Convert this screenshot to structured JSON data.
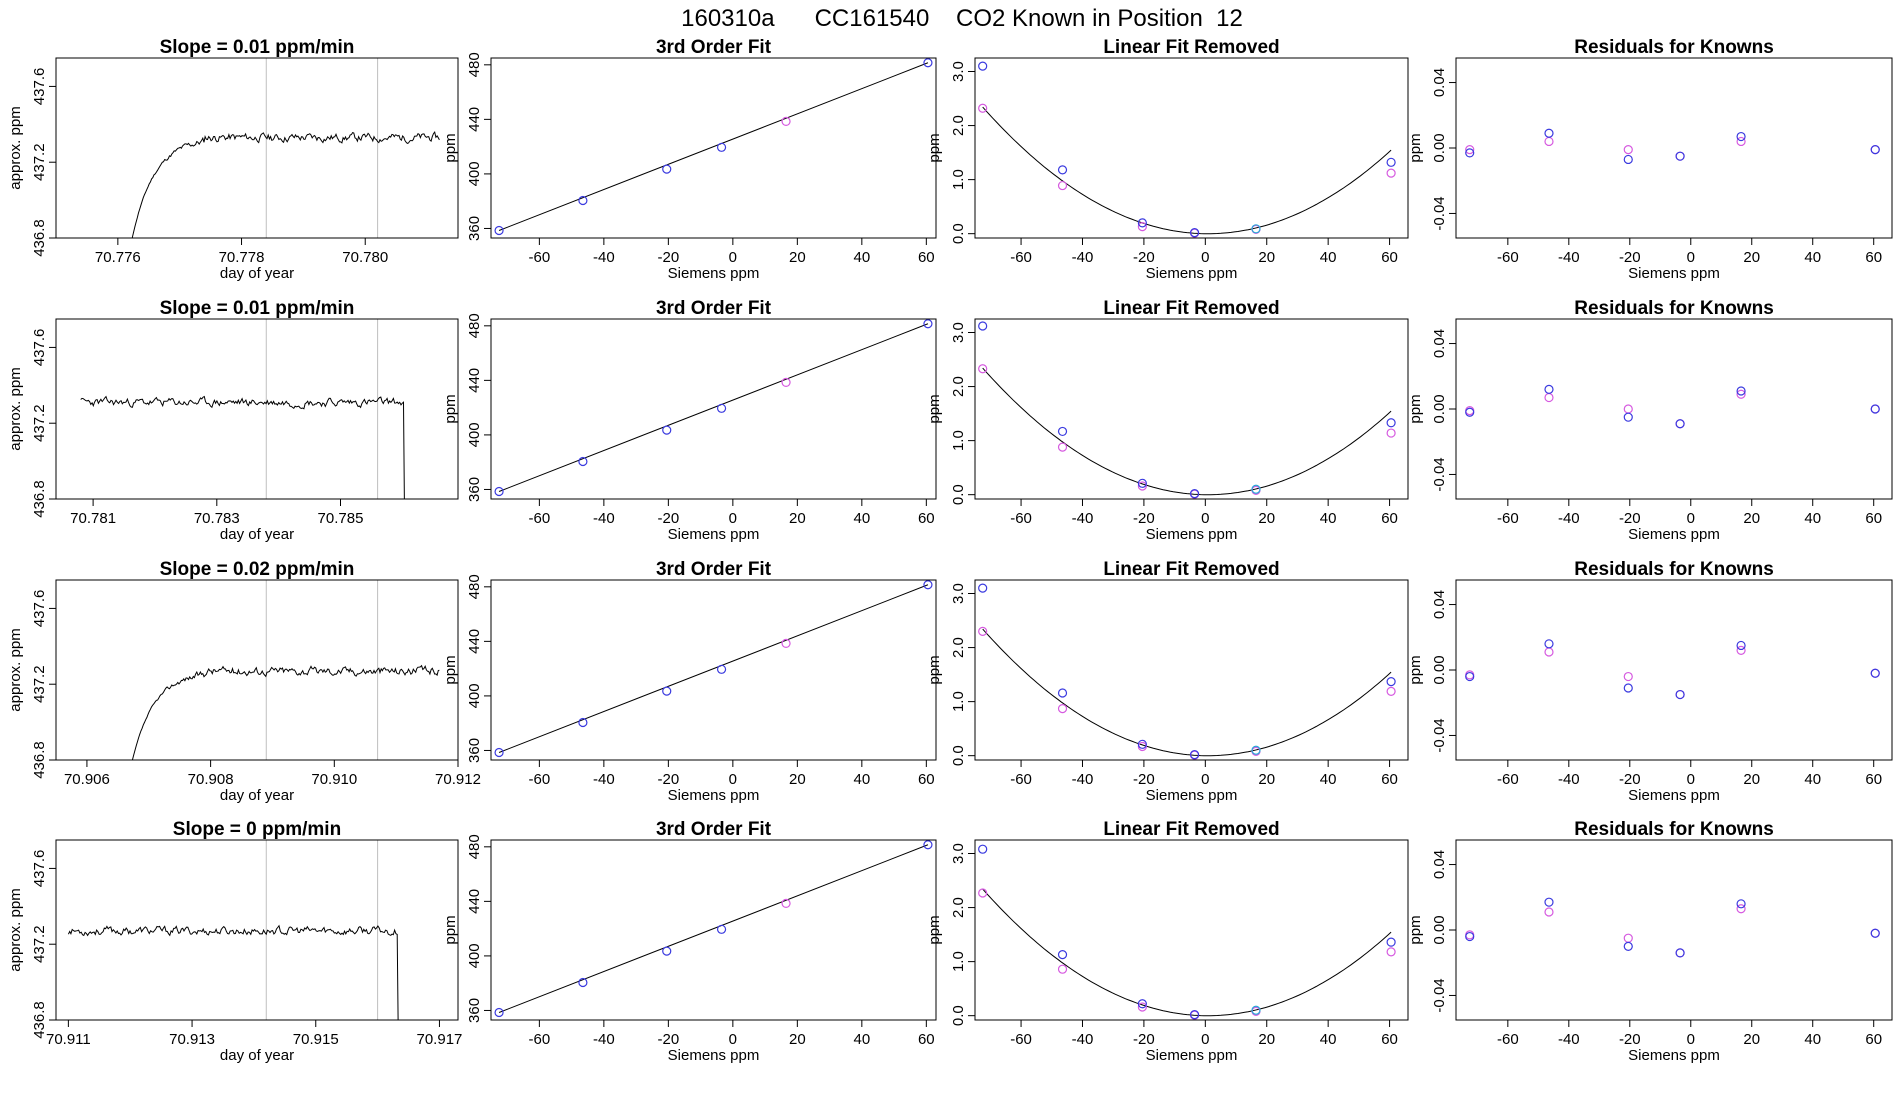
{
  "figure": {
    "title": "160310a      CC161540    CO2 Known in Position  12",
    "colors": {
      "line": "#000000",
      "ref_line": "#bfbfbf",
      "blue": "#3a3adf",
      "magenta": "#d65ae0",
      "cyan": "#2aa9d6"
    }
  },
  "chart_data": [
    {
      "type": "line",
      "row": 0,
      "col": 0,
      "title": "Slope =  0.01  ppm/min",
      "xlabel": "day of year",
      "ylabel": "approx. ppm",
      "xlim": [
        70.775,
        70.7815
      ],
      "ylim": [
        436.8,
        437.75
      ],
      "xticks": [
        70.776,
        70.778,
        70.78
      ],
      "xtick_labels": [
        "70.776",
        "70.778",
        "70.780"
      ],
      "yticks": [
        436.8,
        437.2,
        437.6
      ],
      "ytick_labels": [
        "436.8",
        "437.2",
        "437.6"
      ],
      "vlines": [
        70.7784,
        70.7802
      ],
      "series": {
        "start": 70.7762,
        "end": 70.7812,
        "level": 437.33,
        "rise": true,
        "drop": false,
        "seed": 11
      }
    },
    {
      "type": "scatter",
      "row": 0,
      "col": 1,
      "title": "3rd Order Fit",
      "xlabel": "Siemens ppm",
      "ylabel": "ppm",
      "xlim": [
        -75,
        63
      ],
      "ylim": [
        353,
        485
      ],
      "xticks": [
        -60,
        -40,
        -20,
        0,
        20,
        40,
        60
      ],
      "yticks": [
        360,
        400,
        440,
        480
      ],
      "points_x": [
        -72.5,
        -46.5,
        -20.5,
        -3.5,
        16.5,
        60.5
      ],
      "points_y": [
        358.5,
        380.5,
        403.5,
        419.5,
        438.5,
        481.5
      ],
      "line": [
        [
          -72.5,
          358.5
        ],
        [
          60.5,
          481.5
        ]
      ]
    },
    {
      "type": "scatter",
      "row": 0,
      "col": 2,
      "title": "Linear Fit Removed",
      "xlabel": "Siemens ppm",
      "ylabel": "ppm",
      "xlim": [
        -75,
        66
      ],
      "ylim": [
        -0.08,
        3.25
      ],
      "xticks": [
        -60,
        -40,
        -20,
        0,
        20,
        40,
        60
      ],
      "yticks": [
        0.0,
        1.0,
        2.0,
        3.0
      ],
      "ytick_labels": [
        "0.0",
        "1.0",
        "2.0",
        "3.0"
      ],
      "points_x": [
        -72.5,
        -46.5,
        -20.5,
        -3.5,
        16.5,
        60.5
      ],
      "blue_y": [
        3.1,
        1.18,
        0.2,
        0.02,
        0.09,
        1.32
      ],
      "magenta_y": [
        2.32,
        0.89,
        0.13,
        0.01,
        0.08,
        1.12
      ],
      "curve_coef": {
        "a": 0.000435,
        "b": -0.00077,
        "c0": 0.0
      }
    },
    {
      "type": "scatter",
      "row": 0,
      "col": 3,
      "title": "Residuals for Knowns",
      "xlabel": "Siemens ppm",
      "ylabel": "ppm",
      "xlim": [
        -77,
        66
      ],
      "ylim": [
        -0.055,
        0.055
      ],
      "xticks": [
        -60,
        -40,
        -20,
        0,
        20,
        40,
        60
      ],
      "yticks": [
        -0.04,
        0.0,
        0.04
      ],
      "ytick_labels": [
        "-0.04",
        "0.00",
        "0.04"
      ],
      "points_x": [
        -72.5,
        -46.5,
        -20.5,
        -3.5,
        16.5,
        60.5
      ],
      "blue_y": [
        -0.003,
        0.009,
        -0.007,
        -0.005,
        0.007,
        -0.001
      ],
      "magenta_y": [
        -0.001,
        0.004,
        -0.001,
        -0.005,
        0.004,
        -0.001
      ]
    },
    {
      "type": "line",
      "row": 1,
      "col": 0,
      "title": "Slope =  0.01  ppm/min",
      "xlabel": "day of year",
      "ylabel": "approx. ppm",
      "xlim": [
        70.7804,
        70.7869
      ],
      "ylim": [
        436.8,
        437.75
      ],
      "xticks": [
        70.781,
        70.783,
        70.785
      ],
      "xtick_labels": [
        "70.781",
        "70.783",
        "70.785"
      ],
      "yticks": [
        436.8,
        437.2,
        437.6
      ],
      "ytick_labels": [
        "436.8",
        "437.2",
        "437.6"
      ],
      "vlines": [
        70.7838,
        70.7856
      ],
      "series": {
        "start": 70.7808,
        "end": 70.7861,
        "level": 437.31,
        "rise": false,
        "drop": true,
        "seed": 23
      }
    },
    {
      "type": "scatter",
      "row": 1,
      "col": 1,
      "title": "3rd Order Fit",
      "xlabel": "Siemens ppm",
      "ylabel": "ppm",
      "xlim": [
        -75,
        63
      ],
      "ylim": [
        353,
        485
      ],
      "xticks": [
        -60,
        -40,
        -20,
        0,
        20,
        40,
        60
      ],
      "yticks": [
        360,
        400,
        440,
        480
      ],
      "points_x": [
        -72.5,
        -46.5,
        -20.5,
        -3.5,
        16.5,
        60.5
      ],
      "points_y": [
        358.5,
        380.5,
        403.5,
        419.5,
        438.5,
        481.5
      ],
      "line": [
        [
          -72.5,
          358.5
        ],
        [
          60.5,
          481.5
        ]
      ]
    },
    {
      "type": "scatter",
      "row": 1,
      "col": 2,
      "title": "Linear Fit Removed",
      "xlabel": "Siemens ppm",
      "ylabel": "ppm",
      "xlim": [
        -75,
        66
      ],
      "ylim": [
        -0.08,
        3.25
      ],
      "xticks": [
        -60,
        -40,
        -20,
        0,
        20,
        40,
        60
      ],
      "yticks": [
        0.0,
        1.0,
        2.0,
        3.0
      ],
      "ytick_labels": [
        "0.0",
        "1.0",
        "2.0",
        "3.0"
      ],
      "points_x": [
        -72.5,
        -46.5,
        -20.5,
        -3.5,
        16.5,
        60.5
      ],
      "blue_y": [
        3.12,
        1.17,
        0.21,
        0.02,
        0.1,
        1.33
      ],
      "magenta_y": [
        2.33,
        0.88,
        0.16,
        0.01,
        0.08,
        1.14
      ],
      "curve_coef": {
        "a": 0.000435,
        "b": -0.00077,
        "c0": 0.0
      }
    },
    {
      "type": "scatter",
      "row": 1,
      "col": 3,
      "title": "Residuals for Knowns",
      "xlabel": "Siemens ppm",
      "ylabel": "ppm",
      "xlim": [
        -77,
        66
      ],
      "ylim": [
        -0.055,
        0.055
      ],
      "xticks": [
        -60,
        -40,
        -20,
        0,
        20,
        40,
        60
      ],
      "yticks": [
        -0.04,
        0.0,
        0.04
      ],
      "ytick_labels": [
        "-0.04",
        "0.00",
        "0.04"
      ],
      "points_x": [
        -72.5,
        -46.5,
        -20.5,
        -3.5,
        16.5,
        60.5
      ],
      "blue_y": [
        -0.002,
        0.012,
        -0.005,
        -0.009,
        0.011,
        0.0
      ],
      "magenta_y": [
        -0.001,
        0.007,
        0.0,
        -0.009,
        0.009,
        0.0
      ]
    },
    {
      "type": "line",
      "row": 2,
      "col": 0,
      "title": "Slope =  0.02  ppm/min",
      "xlabel": "day of year",
      "ylabel": "approx. ppm",
      "xlim": [
        70.9055,
        70.912
      ],
      "ylim": [
        436.8,
        437.75
      ],
      "xticks": [
        70.906,
        70.908,
        70.91,
        70.912
      ],
      "xtick_labels": [
        "70.906",
        "70.908",
        "70.910",
        "70.912"
      ],
      "yticks": [
        436.8,
        437.2,
        437.6
      ],
      "ytick_labels": [
        "436.8",
        "437.2",
        "437.6"
      ],
      "vlines": [
        70.9089,
        70.9107
      ],
      "series": {
        "start": 70.9067,
        "end": 70.9117,
        "level": 437.27,
        "rise": true,
        "drop": false,
        "seed": 37
      }
    },
    {
      "type": "scatter",
      "row": 2,
      "col": 1,
      "title": "3rd Order Fit",
      "xlabel": "Siemens ppm",
      "ylabel": "ppm",
      "xlim": [
        -75,
        63
      ],
      "ylim": [
        353,
        485
      ],
      "xticks": [
        -60,
        -40,
        -20,
        0,
        20,
        40,
        60
      ],
      "yticks": [
        360,
        400,
        440,
        480
      ],
      "points_x": [
        -72.5,
        -46.5,
        -20.5,
        -3.5,
        16.5,
        60.5
      ],
      "points_y": [
        358.5,
        380.5,
        403.5,
        419.5,
        438.5,
        481.5
      ],
      "line": [
        [
          -72.5,
          358.5
        ],
        [
          60.5,
          481.5
        ]
      ]
    },
    {
      "type": "scatter",
      "row": 2,
      "col": 2,
      "title": "Linear Fit Removed",
      "xlabel": "Siemens ppm",
      "ylabel": "ppm",
      "xlim": [
        -75,
        66
      ],
      "ylim": [
        -0.08,
        3.25
      ],
      "xticks": [
        -60,
        -40,
        -20,
        0,
        20,
        40,
        60
      ],
      "yticks": [
        0.0,
        1.0,
        2.0,
        3.0
      ],
      "ytick_labels": [
        "0.0",
        "1.0",
        "2.0",
        "3.0"
      ],
      "points_x": [
        -72.5,
        -46.5,
        -20.5,
        -3.5,
        16.5,
        60.5
      ],
      "blue_y": [
        3.1,
        1.16,
        0.21,
        0.02,
        0.1,
        1.37
      ],
      "magenta_y": [
        2.3,
        0.87,
        0.17,
        0.01,
        0.08,
        1.19
      ],
      "curve_coef": {
        "a": 0.000435,
        "b": -0.00077,
        "c0": 0.0
      }
    },
    {
      "type": "scatter",
      "row": 2,
      "col": 3,
      "title": "Residuals for Knowns",
      "xlabel": "Siemens ppm",
      "ylabel": "ppm",
      "xlim": [
        -77,
        66
      ],
      "ylim": [
        -0.055,
        0.055
      ],
      "xticks": [
        -60,
        -40,
        -20,
        0,
        20,
        40,
        60
      ],
      "yticks": [
        -0.04,
        0.0,
        0.04
      ],
      "ytick_labels": [
        "-0.04",
        "0.00",
        "0.04"
      ],
      "points_x": [
        -72.5,
        -46.5,
        -20.5,
        -3.5,
        16.5,
        60.5
      ],
      "blue_y": [
        -0.004,
        0.016,
        -0.011,
        -0.015,
        0.015,
        -0.002
      ],
      "magenta_y": [
        -0.003,
        0.011,
        -0.004,
        -0.015,
        0.012,
        -0.002
      ]
    },
    {
      "type": "line",
      "row": 3,
      "col": 0,
      "title": "Slope =  0  ppm/min",
      "xlabel": "day of year",
      "ylabel": "approx. ppm",
      "xlim": [
        70.9108,
        70.9173
      ],
      "ylim": [
        436.8,
        437.75
      ],
      "xticks": [
        70.911,
        70.913,
        70.915,
        70.917
      ],
      "xtick_labels": [
        "70.911",
        "70.913",
        "70.915",
        "70.917"
      ],
      "yticks": [
        436.8,
        437.2,
        437.6
      ],
      "ytick_labels": [
        "436.8",
        "437.2",
        "437.6"
      ],
      "vlines": [
        70.9142,
        70.916
      ],
      "series": {
        "start": 70.911,
        "end": 70.9164,
        "level": 437.27,
        "rise": false,
        "drop": true,
        "seed": 53
      }
    },
    {
      "type": "scatter",
      "row": 3,
      "col": 1,
      "title": "3rd Order Fit",
      "xlabel": "Siemens ppm",
      "ylabel": "ppm",
      "xlim": [
        -75,
        63
      ],
      "ylim": [
        353,
        485
      ],
      "xticks": [
        -60,
        -40,
        -20,
        0,
        20,
        40,
        60
      ],
      "yticks": [
        360,
        400,
        440,
        480
      ],
      "points_x": [
        -72.5,
        -46.5,
        -20.5,
        -3.5,
        16.5,
        60.5
      ],
      "points_y": [
        358.5,
        380.5,
        403.5,
        419.5,
        438.5,
        481.5
      ],
      "line": [
        [
          -72.5,
          358.5
        ],
        [
          60.5,
          481.5
        ]
      ]
    },
    {
      "type": "scatter",
      "row": 3,
      "col": 2,
      "title": "Linear Fit Removed",
      "xlabel": "Siemens ppm",
      "ylabel": "ppm",
      "xlim": [
        -75,
        66
      ],
      "ylim": [
        -0.08,
        3.25
      ],
      "xticks": [
        -60,
        -40,
        -20,
        0,
        20,
        40,
        60
      ],
      "yticks": [
        0.0,
        1.0,
        2.0,
        3.0
      ],
      "ytick_labels": [
        "0.0",
        "1.0",
        "2.0",
        "3.0"
      ],
      "points_x": [
        -72.5,
        -46.5,
        -20.5,
        -3.5,
        16.5,
        60.5
      ],
      "blue_y": [
        3.08,
        1.13,
        0.22,
        0.02,
        0.1,
        1.36
      ],
      "magenta_y": [
        2.27,
        0.86,
        0.16,
        0.01,
        0.08,
        1.18
      ],
      "curve_coef": {
        "a": 0.000435,
        "b": -0.00077,
        "c0": 0.0
      }
    },
    {
      "type": "scatter",
      "row": 3,
      "col": 3,
      "title": "Residuals for Knowns",
      "xlabel": "Siemens ppm",
      "ylabel": "ppm",
      "xlim": [
        -77,
        66
      ],
      "ylim": [
        -0.055,
        0.055
      ],
      "xticks": [
        -60,
        -40,
        -20,
        0,
        20,
        40,
        60
      ],
      "yticks": [
        -0.04,
        0.0,
        0.04
      ],
      "ytick_labels": [
        "-0.04",
        "0.00",
        "0.04"
      ],
      "points_x": [
        -72.5,
        -46.5,
        -20.5,
        -3.5,
        16.5,
        60.5
      ],
      "blue_y": [
        -0.004,
        0.017,
        -0.01,
        -0.014,
        0.016,
        -0.002
      ],
      "magenta_y": [
        -0.003,
        0.011,
        -0.005,
        -0.014,
        0.013,
        -0.002
      ]
    }
  ]
}
